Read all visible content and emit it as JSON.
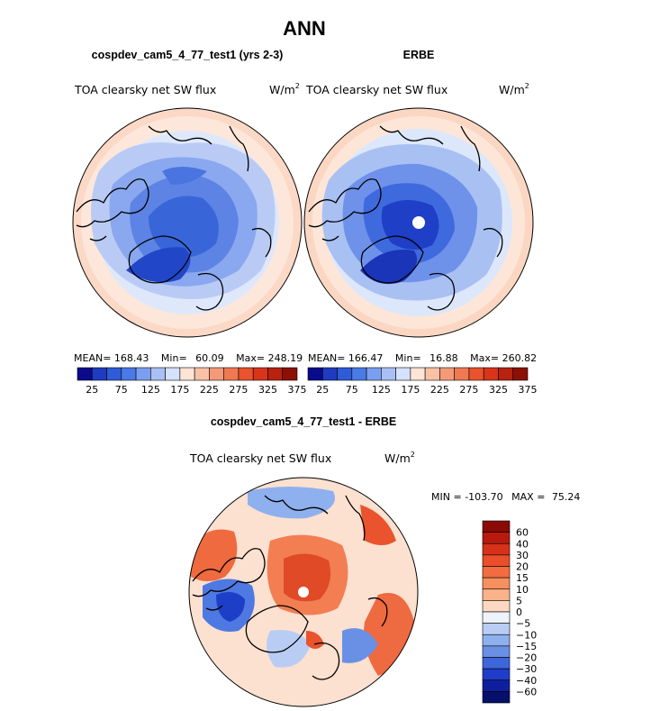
{
  "chart_data": [
    {
      "type": "heatmap",
      "projection": "north polar stereographic",
      "panel": "top-left",
      "title": "ANN",
      "case_label": "cospdev_cam5_4_77_test1 (yrs 2-3)",
      "variable": "TOA clearsky net SW flux",
      "units": "W/m",
      "units_sup": "2",
      "stats": {
        "mean_label": "MEAN=",
        "mean": "168.43",
        "min_label": "Min=",
        "min": "60.09",
        "max_label": "Max=",
        "max": "248.19"
      },
      "levels": [
        "25",
        "75",
        "125",
        "175",
        "225",
        "275",
        "325",
        "375"
      ],
      "colorbar_colors": [
        "#0a0a8c",
        "#1f3bbf",
        "#2e5bd8",
        "#4a7ae6",
        "#7b9ff0",
        "#a9c0f5",
        "#d4e2fb",
        "#fde4d6",
        "#f9c2a6",
        "#f49a78",
        "#ef7a52",
        "#e9532d",
        "#d8351a",
        "#b8220e",
        "#8c1006"
      ]
    },
    {
      "type": "heatmap",
      "projection": "north polar stereographic",
      "panel": "top-right",
      "case_label": "ERBE",
      "variable": "TOA clearsky net SW flux",
      "units": "W/m",
      "units_sup": "2",
      "stats": {
        "mean_label": "MEAN=",
        "mean": "166.47",
        "min_label": "Min=",
        "min": "16.88",
        "max_label": "Max=",
        "max": "260.82"
      },
      "levels": [
        "25",
        "75",
        "125",
        "175",
        "225",
        "275",
        "325",
        "375"
      ],
      "colorbar_colors": [
        "#0a0a8c",
        "#1f3bbf",
        "#2e5bd8",
        "#4a7ae6",
        "#7b9ff0",
        "#a9c0f5",
        "#d4e2fb",
        "#fde4d6",
        "#f9c2a6",
        "#f49a78",
        "#ef7a52",
        "#e9532d",
        "#d8351a",
        "#b8220e",
        "#8c1006"
      ]
    },
    {
      "type": "heatmap",
      "projection": "north polar stereographic",
      "panel": "bottom",
      "case_label": "cospdev_cam5_4_77_test1 - ERBE",
      "variable": "TOA clearsky net SW flux",
      "units": "W/m",
      "units_sup": "2",
      "stats": {
        "min_label": "MIN =",
        "min": "-103.70",
        "max_label": "MAX =",
        "max": "75.24"
      },
      "levels": [
        "60",
        "40",
        "30",
        "20",
        "15",
        "10",
        "5",
        "0",
        "−5",
        "−10",
        "−15",
        "−20",
        "−30",
        "−40",
        "−60"
      ],
      "colorbar_colors": [
        "#8c0a06",
        "#b81a0e",
        "#d8311a",
        "#ea4e2a",
        "#f26c40",
        "#f6905e",
        "#f9b28a",
        "#fcd8c0",
        "#eef2fb",
        "#b9cdf4",
        "#8fb0ee",
        "#6a90e6",
        "#3e66db",
        "#1f3dc8",
        "#0e1f9e",
        "#05106a"
      ]
    }
  ]
}
